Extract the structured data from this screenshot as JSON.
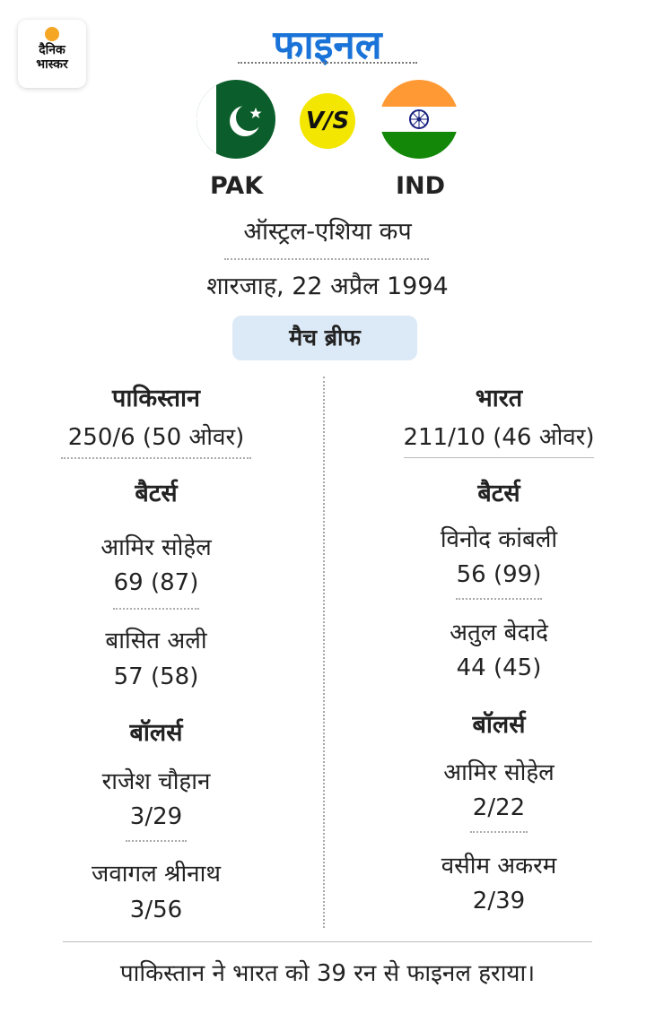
{
  "brand": {
    "line1": "दैनिक",
    "line2": "भास्कर"
  },
  "title": "फाइनल",
  "teams": {
    "left_code": "PAK",
    "right_code": "IND",
    "vs": "V/S"
  },
  "tournament": "ऑस्ट्रल-एशिया कप",
  "venue_date": "शारजाह, 22 अप्रैल 1994",
  "brief_label": "मैच ब्रीफ",
  "pakistan": {
    "name": "पाकिस्तान",
    "score": "250/6 (50 ओवर)",
    "batters_label": "बैटर्स",
    "batters": [
      {
        "name": "आमिर सोहेल",
        "stat": "69 (87)"
      },
      {
        "name": "बासित अली",
        "stat": "57 (58)"
      }
    ],
    "bowlers_label": "बॉलर्स",
    "bowlers": [
      {
        "name": "राजेश चौहान",
        "stat": "3/29"
      },
      {
        "name": "जवागल श्रीनाथ",
        "stat": "3/56"
      }
    ]
  },
  "india": {
    "name": "भारत",
    "score": "211/10 (46 ओवर)",
    "batters_label": "बैटर्स",
    "batters": [
      {
        "name": "विनोद कांबली",
        "stat": "56 (99)"
      },
      {
        "name": "अतुल बेदादे",
        "stat": "44 (45)"
      }
    ],
    "bowlers_label": "बॉलर्स",
    "bowlers": [
      {
        "name": "आमिर सोहेल",
        "stat": "2/22"
      },
      {
        "name": "वसीम अकरम",
        "stat": "2/39"
      }
    ]
  },
  "result": "पाकिस्तान ने भारत को 39 रन से फाइनल हराया।",
  "colors": {
    "accent": "#1a73d8",
    "pill": "#dce9f6",
    "vs": "#f3e600",
    "pak_green": "#0b5e2b",
    "ind_saffron": "#ff9933",
    "ind_green": "#138808",
    "chakra": "#1a237e"
  }
}
